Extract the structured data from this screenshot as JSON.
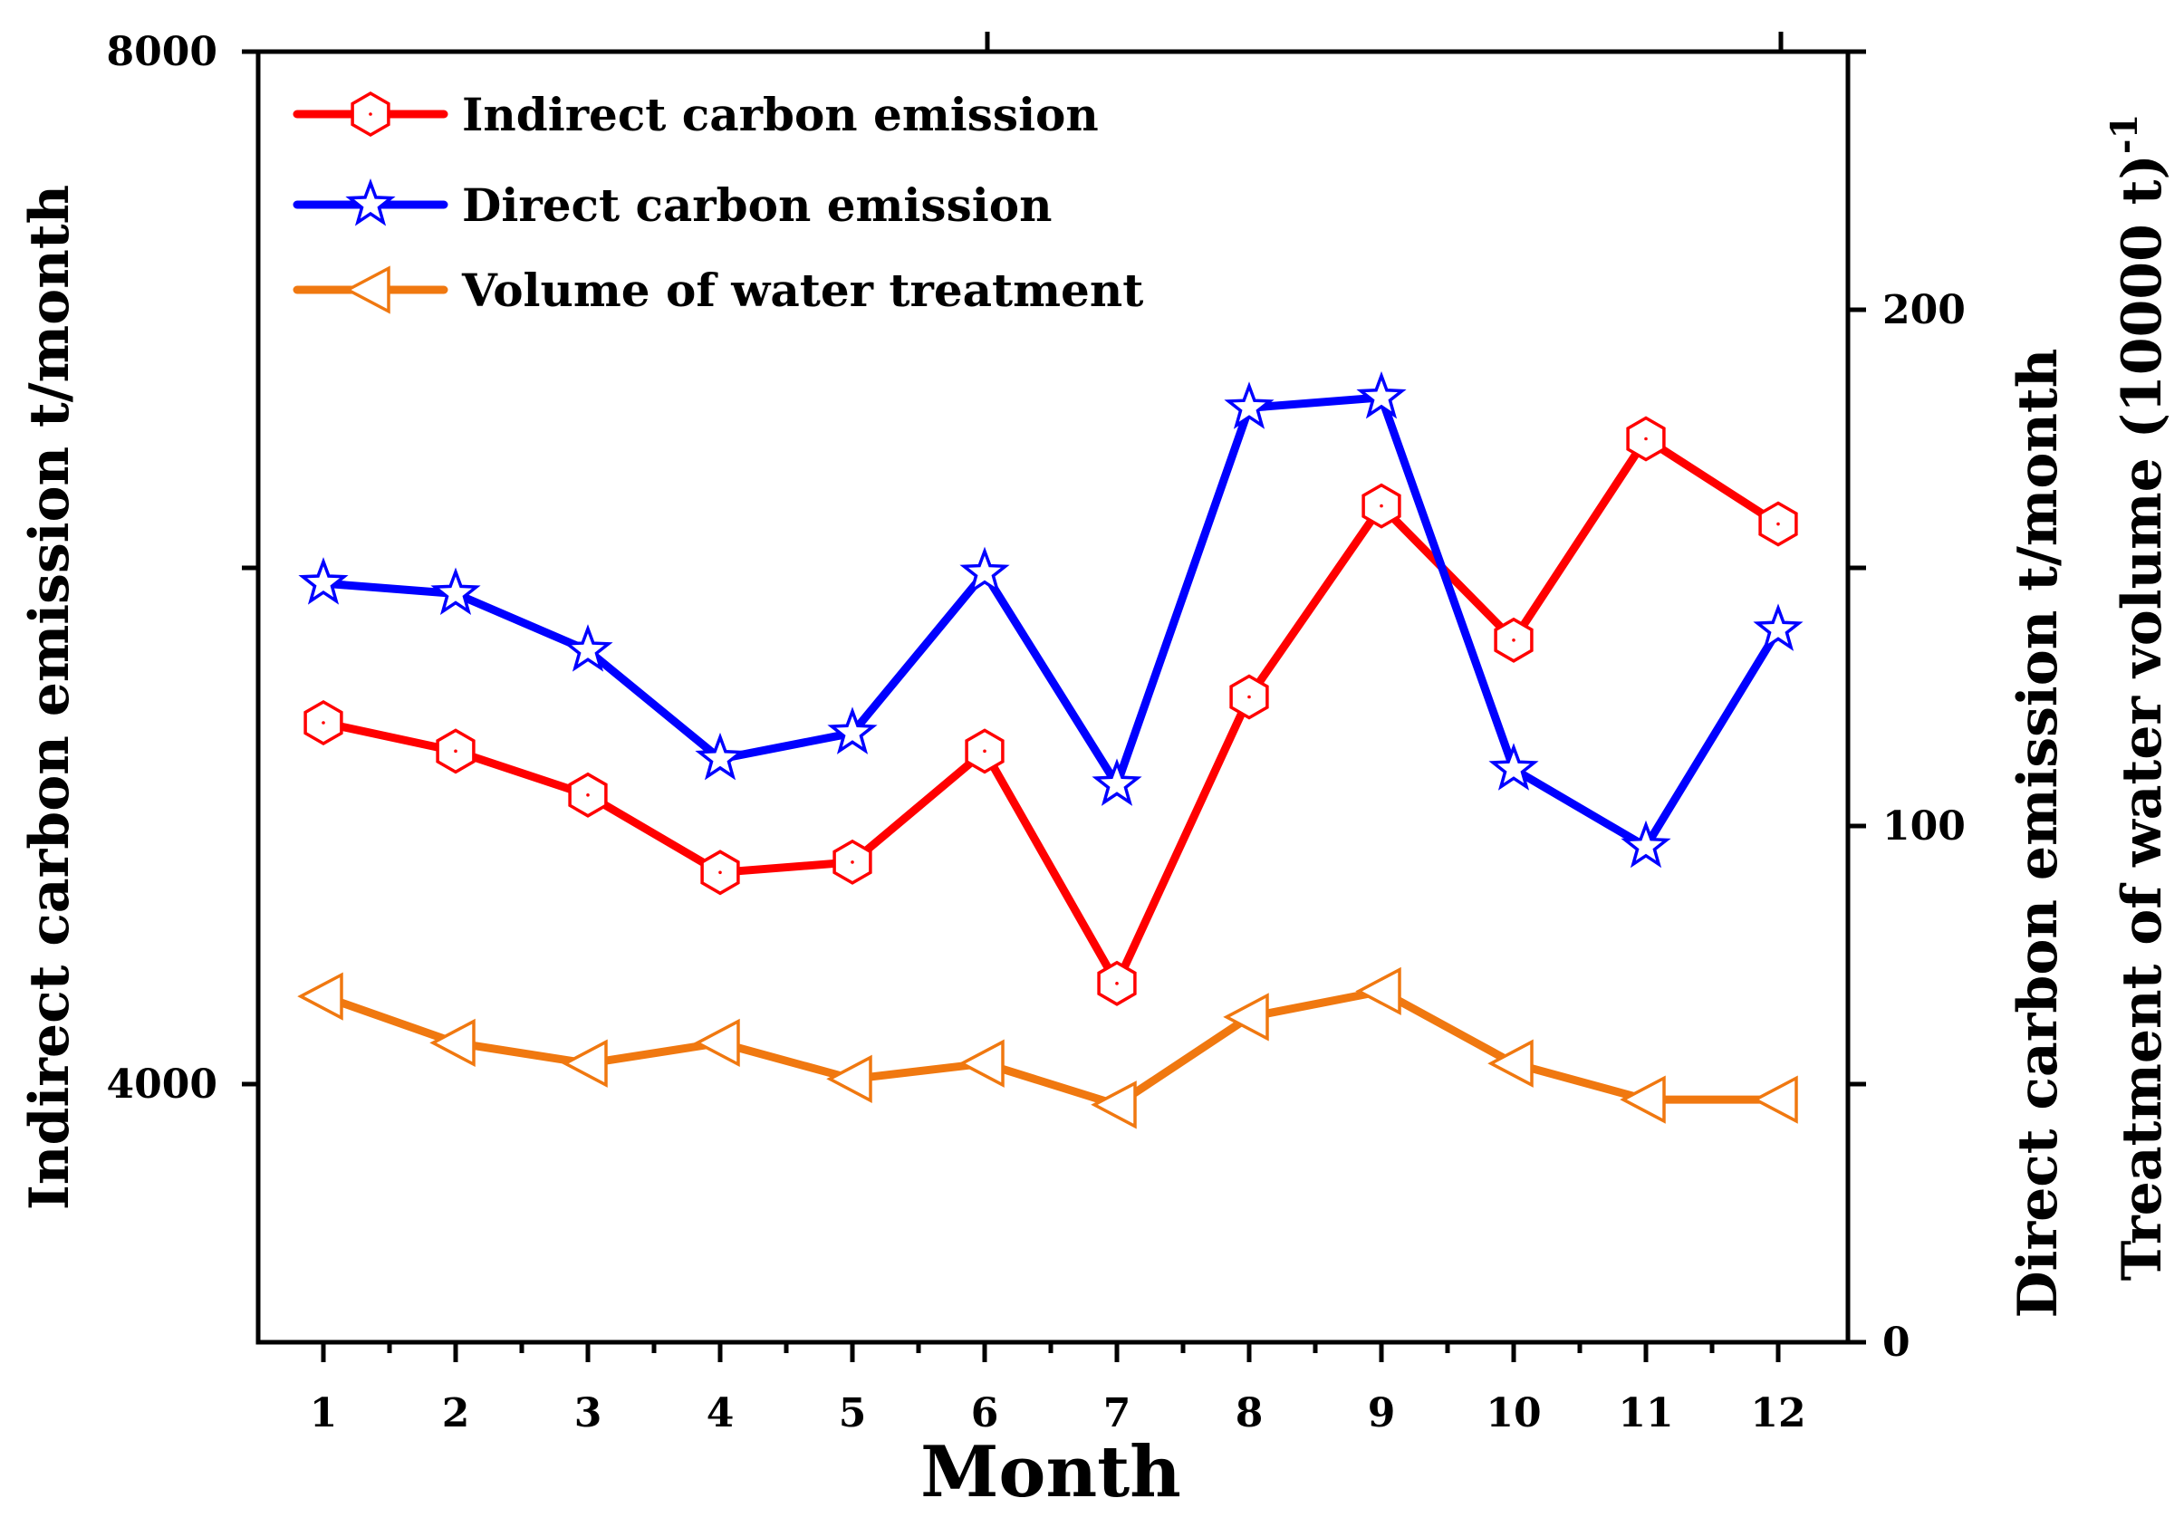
{
  "chart_data": {
    "type": "line",
    "x": [
      1,
      2,
      3,
      4,
      5,
      6,
      7,
      8,
      9,
      10,
      11,
      12
    ],
    "xlabel": "Month",
    "ylabel_left": "Indirect carbon emission  t/month",
    "ylabel_right_1": "Direct carbon emission t/month",
    "ylabel_right_2": "Treatment of water volume (10000 t)",
    "ylabel_right_2_sup": "-1",
    "ylim_left": [
      3000,
      8000
    ],
    "ylim_right": [
      0,
      250
    ],
    "left_ticks": [
      "4000",
      "8000"
    ],
    "right_ticks": [
      "0",
      "100",
      "200"
    ],
    "series": [
      {
        "name": "Indirect carbon emission",
        "axis": "left",
        "color": "#ff0000",
        "marker": "hexagon",
        "values": [
          5400,
          5290,
          5120,
          4820,
          4860,
          5290,
          4390,
          5500,
          6240,
          5720,
          6500,
          6170
        ]
      },
      {
        "name": "Direct carbon emission",
        "axis": "right",
        "color": "#0000ff",
        "marker": "star",
        "values": [
          147,
          145,
          134,
          113,
          118,
          149,
          108,
          181,
          183,
          111,
          96,
          138
        ]
      },
      {
        "name": "Volume of water treatment",
        "axis": "right",
        "color": "#f07810",
        "marker": "triangle-left",
        "values": [
          67,
          58,
          54,
          58,
          51,
          54,
          46,
          63,
          68,
          54,
          47,
          47
        ]
      }
    ]
  }
}
